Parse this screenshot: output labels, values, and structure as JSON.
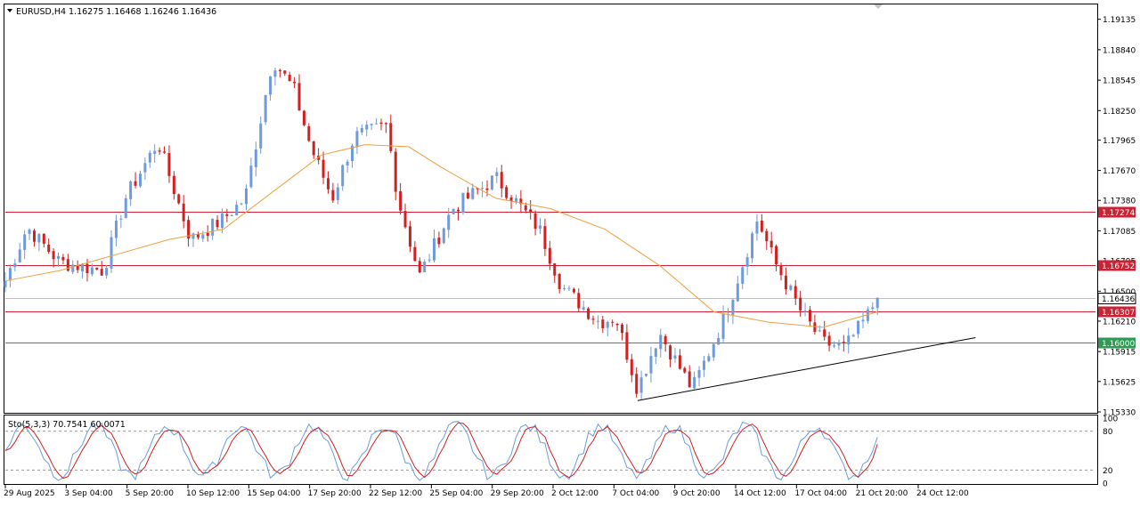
{
  "header": {
    "symbol_tf": "EURUSD,H4",
    "ohlc": "1.16275 1.16468 1.16246 1.16436"
  },
  "colors": {
    "bull": "#6f9bdc",
    "bear": "#d41f1f",
    "ma": "#f0a040",
    "resistance": "#cc2233",
    "support": "#2e9a55",
    "trendline": "#000000",
    "stoch_main": "#6f9bdc",
    "stoch_signal": "#d41f1f"
  },
  "chart_data": [
    {
      "type": "candlestick",
      "symbol": "EURUSD",
      "timeframe": "H4",
      "ylim": [
        1.1533,
        1.1927
      ],
      "y_ticks": [
        "1.19135",
        "1.18840",
        "1.18545",
        "1.18250",
        "1.17965",
        "1.17670",
        "1.17380",
        "1.17085",
        "1.16795",
        "1.16500",
        "1.16210",
        "1.15915",
        "1.15625",
        "1.15330"
      ],
      "x_ticks": [
        "29 Aug 2025",
        "3 Sep 04:00",
        "5 Sep 20:00",
        "10 Sep 12:00",
        "15 Sep 04:00",
        "17 Sep 20:00",
        "22 Sep 12:00",
        "25 Sep 04:00",
        "29 Sep 20:00",
        "2 Oct 12:00",
        "7 Oct 04:00",
        "9 Oct 20:00",
        "14 Oct 12:00",
        "17 Oct 04:00",
        "21 Oct 20:00",
        "24 Oct 12:00"
      ],
      "last_close": 1.16436,
      "last_price_label": "1.16436",
      "levels": [
        {
          "value": 1.17274,
          "label": "1.17274",
          "kind": "resistance"
        },
        {
          "value": 1.16752,
          "label": "1.16752",
          "kind": "resistance"
        },
        {
          "value": 1.16307,
          "label": "1.16307",
          "kind": "resistance"
        },
        {
          "value": 1.16,
          "label": "1.16000",
          "kind": "support"
        }
      ],
      "trendline": [
        {
          "bar": 0.58,
          "price": 1.1544
        },
        {
          "bar": 0.89,
          "price": 1.1605
        }
      ],
      "key_points": [
        {
          "bar": 0.0,
          "close": 1.166
        },
        {
          "bar": 0.02,
          "close": 1.1712
        },
        {
          "bar": 0.05,
          "close": 1.1678
        },
        {
          "bar": 0.09,
          "close": 1.167
        },
        {
          "bar": 0.11,
          "close": 1.174
        },
        {
          "bar": 0.14,
          "close": 1.1795
        },
        {
          "bar": 0.17,
          "close": 1.17
        },
        {
          "bar": 0.2,
          "close": 1.172
        },
        {
          "bar": 0.22,
          "close": 1.174
        },
        {
          "bar": 0.245,
          "close": 1.1875
        },
        {
          "bar": 0.265,
          "close": 1.1845
        },
        {
          "bar": 0.28,
          "close": 1.179
        },
        {
          "bar": 0.3,
          "close": 1.174
        },
        {
          "bar": 0.32,
          "close": 1.18
        },
        {
          "bar": 0.35,
          "close": 1.181
        },
        {
          "bar": 0.36,
          "close": 1.174
        },
        {
          "bar": 0.38,
          "close": 1.1665
        },
        {
          "bar": 0.41,
          "close": 1.173
        },
        {
          "bar": 0.45,
          "close": 1.176
        },
        {
          "bar": 0.49,
          "close": 1.171
        },
        {
          "bar": 0.51,
          "close": 1.1655
        },
        {
          "bar": 0.545,
          "close": 1.162
        },
        {
          "bar": 0.56,
          "close": 1.1625
        },
        {
          "bar": 0.58,
          "close": 1.1555
        },
        {
          "bar": 0.6,
          "close": 1.161
        },
        {
          "bar": 0.63,
          "close": 1.1555
        },
        {
          "bar": 0.66,
          "close": 1.1625
        },
        {
          "bar": 0.69,
          "close": 1.172
        },
        {
          "bar": 0.705,
          "close": 1.168
        },
        {
          "bar": 0.73,
          "close": 1.163
        },
        {
          "bar": 0.75,
          "close": 1.16
        },
        {
          "bar": 0.77,
          "close": 1.1595
        },
        {
          "bar": 0.79,
          "close": 1.1625
        },
        {
          "bar": 0.8,
          "close": 1.16436
        }
      ],
      "moving_average": [
        {
          "bar": 0.0,
          "value": 1.166
        },
        {
          "bar": 0.05,
          "value": 1.167
        },
        {
          "bar": 0.1,
          "value": 1.1685
        },
        {
          "bar": 0.15,
          "value": 1.17
        },
        {
          "bar": 0.2,
          "value": 1.171
        },
        {
          "bar": 0.25,
          "value": 1.175
        },
        {
          "bar": 0.29,
          "value": 1.1782
        },
        {
          "bar": 0.33,
          "value": 1.1792
        },
        {
          "bar": 0.37,
          "value": 1.179
        },
        {
          "bar": 0.4,
          "value": 1.177
        },
        {
          "bar": 0.45,
          "value": 1.174
        },
        {
          "bar": 0.5,
          "value": 1.173
        },
        {
          "bar": 0.55,
          "value": 1.171
        },
        {
          "bar": 0.6,
          "value": 1.1675
        },
        {
          "bar": 0.65,
          "value": 1.163
        },
        {
          "bar": 0.7,
          "value": 1.162
        },
        {
          "bar": 0.75,
          "value": 1.1615
        },
        {
          "bar": 0.8,
          "value": 1.163
        }
      ]
    },
    {
      "type": "line",
      "title": "Sto(5,3,3) 70.7541 60.0071",
      "ylim": [
        0,
        100
      ],
      "y_ticks": [
        "100",
        "80",
        "20",
        "0"
      ],
      "levels": [
        80,
        20
      ],
      "main_value": 70.7541,
      "signal_value": 60.0071
    }
  ]
}
